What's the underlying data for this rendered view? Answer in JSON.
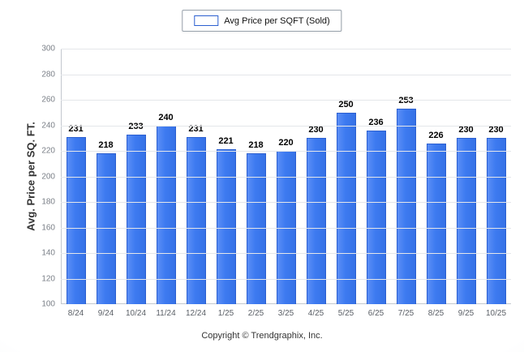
{
  "legend": {
    "label": "Avg Price per SQFT (Sold)"
  },
  "footer": "Copyright © Trendgraphix, Inc.",
  "colors": {
    "bar": "#3D7AF0",
    "bar_border": "#2B5FD0",
    "grid": "#E4E6EA"
  },
  "chart_data": {
    "type": "bar",
    "title": "Avg Price per SQFT (Sold)",
    "categories": [
      "8/24",
      "9/24",
      "10/24",
      "11/24",
      "12/24",
      "1/25",
      "2/25",
      "3/25",
      "4/25",
      "5/25",
      "6/25",
      "7/25",
      "8/25",
      "9/25",
      "10/25"
    ],
    "values": [
      231,
      218,
      233,
      240,
      231,
      221,
      218,
      220,
      230,
      250,
      236,
      253,
      226,
      230,
      230
    ],
    "xlabel": "",
    "ylabel": "Avg. Price per SQ. FT.",
    "ylim": [
      100,
      300
    ],
    "ytick_step": 20,
    "grid": true,
    "legend_position": "top",
    "bar_value_labels": true
  }
}
